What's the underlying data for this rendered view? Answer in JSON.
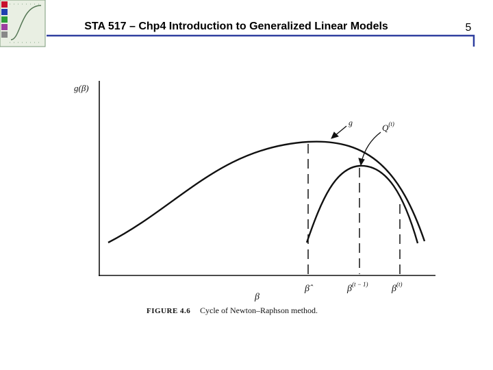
{
  "header": {
    "title": "STA 517 – Chp4 Introduction to Generalized Linear Models",
    "page_number": "5"
  },
  "figure": {
    "y_axis_label": "g(β)",
    "x_axis_label": "β",
    "curve_labels": {
      "g": "g",
      "q": {
        "base": "Q",
        "sup": "(t)"
      }
    },
    "x_marks": [
      {
        "base": "β̂",
        "sup": ""
      },
      {
        "base": "β",
        "sup": "(t − 1)"
      },
      {
        "base": "β",
        "sup": "(t)"
      }
    ],
    "caption": {
      "number": "FIGURE 4.6",
      "text": "Cycle of Newton–Raphson method."
    }
  }
}
